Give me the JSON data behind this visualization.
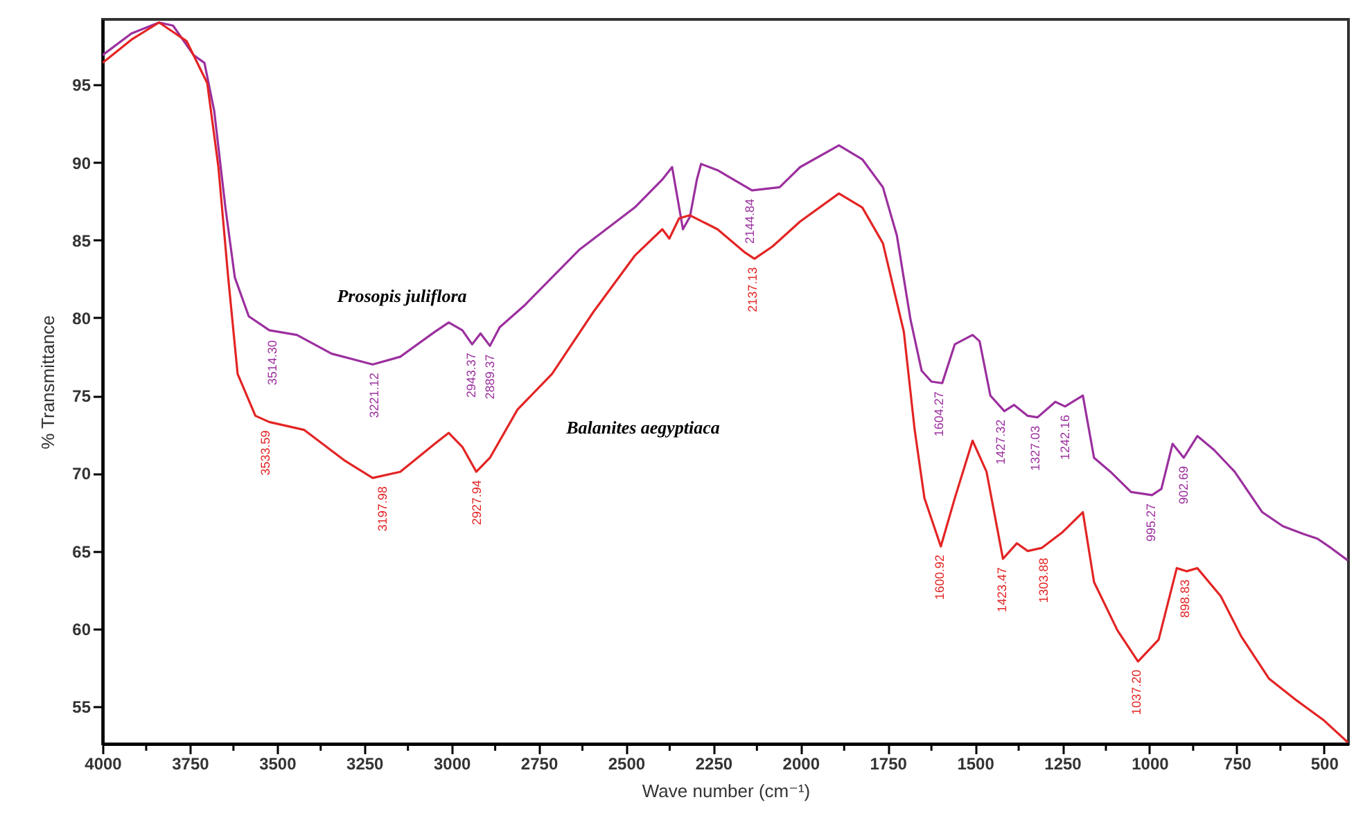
{
  "chart_data": {
    "type": "line",
    "xlabel": "Wave number (cm⁻¹)",
    "ylabel": "% Transmittance",
    "xlim": [
      4000,
      430
    ],
    "ylim": [
      52.6,
      99.2
    ],
    "xticks": [
      4000,
      {
        "value": 3875,
        "label": null
      },
      3750,
      {
        "value": 3625,
        "label": null
      },
      3500,
      {
        "value": 3375,
        "label": null
      },
      3250,
      {
        "value": 3125,
        "label": null
      },
      3000,
      {
        "value": 2875,
        "label": null
      },
      2750,
      {
        "value": 2625,
        "label": null
      },
      2500,
      {
        "value": 2375,
        "label": null
      },
      2250,
      {
        "value": 2125,
        "label": null
      },
      2000,
      {
        "value": 1875,
        "label": null
      },
      1750,
      {
        "value": 1625,
        "label": null
      },
      1500,
      {
        "value": 1375,
        "label": null
      },
      1250,
      {
        "value": 1125,
        "label": null
      },
      1000,
      {
        "value": 875,
        "label": null
      },
      750,
      {
        "value": 625,
        "label": null
      },
      500
    ],
    "yticks": [
      55,
      60,
      65,
      70,
      75,
      80,
      85,
      90,
      95
    ],
    "series": [
      {
        "name": "Prosopis juliflora",
        "color": "#9b2f9e",
        "x": [
          4000,
          3917,
          3838,
          3798,
          3739,
          3708,
          3680,
          3648,
          3621,
          3581,
          3522,
          3443,
          3344,
          3226,
          3147,
          3048,
          3008,
          2969,
          2941,
          2917,
          2890,
          2862,
          2791,
          2633,
          2475,
          2396,
          2368,
          2337,
          2317,
          2297,
          2285,
          2238,
          2139,
          2060,
          2001,
          1890,
          1823,
          1764,
          1724,
          1685,
          1653,
          1625,
          1594,
          1558,
          1507,
          1487,
          1456,
          1416,
          1388,
          1349,
          1321,
          1270,
          1242,
          1191,
          1159,
          1112,
          1053,
          993,
          966,
          934,
          902,
          863,
          815,
          756,
          677,
          618,
          559,
          519,
          480,
          432
        ],
        "values": [
          96.9,
          98.3,
          99.0,
          98.8,
          96.9,
          96.4,
          93.3,
          87.1,
          82.6,
          80.1,
          79.2,
          78.9,
          77.7,
          77.0,
          77.5,
          79.1,
          79.7,
          79.2,
          78.3,
          79.0,
          78.2,
          79.4,
          80.8,
          84.4,
          87.1,
          88.9,
          89.7,
          85.7,
          86.5,
          88.9,
          89.9,
          89.5,
          88.2,
          88.4,
          89.7,
          91.1,
          90.2,
          88.4,
          85.3,
          79.9,
          76.6,
          75.9,
          75.8,
          78.3,
          78.9,
          78.5,
          75.0,
          74.0,
          74.4,
          73.7,
          73.6,
          74.6,
          74.3,
          75.0,
          71.0,
          70.1,
          68.8,
          68.6,
          69.0,
          71.9,
          71.0,
          72.4,
          71.5,
          70.1,
          67.5,
          66.6,
          66.1,
          65.8,
          65.2,
          64.4
        ]
      },
      {
        "name": "Balanites aegyptiaca",
        "color": "#e32424",
        "x": [
          4000,
          3917,
          3838,
          3759,
          3700,
          3668,
          3640,
          3613,
          3562,
          3522,
          3423,
          3305,
          3226,
          3147,
          3048,
          3008,
          2969,
          2929,
          2890,
          2811,
          2712,
          2593,
          2475,
          2396,
          2376,
          2348,
          2317,
          2238,
          2159,
          2132,
          2080,
          2001,
          1890,
          1823,
          1764,
          1704,
          1673,
          1645,
          1598,
          1558,
          1507,
          1467,
          1420,
          1380,
          1349,
          1309,
          1250,
          1191,
          1159,
          1092,
          1033,
          974,
          922,
          894,
          863,
          796,
          737,
          658,
          579,
          500,
          432
        ],
        "values": [
          96.4,
          97.9,
          99.0,
          97.8,
          95.1,
          89.7,
          82.6,
          76.4,
          73.7,
          73.3,
          72.8,
          70.8,
          69.7,
          70.1,
          71.9,
          72.6,
          71.7,
          70.1,
          71.0,
          74.1,
          76.4,
          80.4,
          84.0,
          85.7,
          85.1,
          86.4,
          86.6,
          85.7,
          84.2,
          83.8,
          84.6,
          86.2,
          88.0,
          87.1,
          84.8,
          79.1,
          72.8,
          68.4,
          65.3,
          68.4,
          72.1,
          70.1,
          64.5,
          65.5,
          65.0,
          65.2,
          66.2,
          67.5,
          63.0,
          59.9,
          57.9,
          59.3,
          63.9,
          63.7,
          63.9,
          62.1,
          59.5,
          56.8,
          55.4,
          54.1,
          52.7
        ]
      }
    ],
    "annotations": [
      {
        "text": "3514.30",
        "x": 3514.3,
        "y": 79.1
      },
      {
        "text": "3221.12",
        "x": 3221.12,
        "y": 77.0
      },
      {
        "text": "2943.37",
        "x": 2943.37,
        "y": 78.3
      },
      {
        "text": "2889.37",
        "x": 2889.37,
        "y": 78.2
      },
      {
        "text": "2144.84",
        "x": 2144.84,
        "y": 88.2
      },
      {
        "text": "1604.27",
        "x": 1604.27,
        "y": 75.8
      },
      {
        "text": "1427.32",
        "x": 1427.32,
        "y": 74.0
      },
      {
        "text": "1327.03",
        "x": 1327.03,
        "y": 73.6
      },
      {
        "text": "1242.16",
        "x": 1242.16,
        "y": 74.3
      },
      {
        "text": "995.27",
        "x": 995.27,
        "y": 68.6
      },
      {
        "text": "902.69",
        "x": 902.69,
        "y": 71.0
      },
      {
        "text": "3533.59",
        "x": 3533.59,
        "y": 73.3
      },
      {
        "text": "3197.98",
        "x": 3197.98,
        "y": 69.7
      },
      {
        "text": "2927.94",
        "x": 2927.94,
        "y": 70.1
      },
      {
        "text": "2137.13",
        "x": 2137.13,
        "y": 83.8
      },
      {
        "text": "1600.92",
        "x": 1600.92,
        "y": 65.3
      },
      {
        "text": "1423.47",
        "x": 1423.47,
        "y": 64.5
      },
      {
        "text": "1303.88",
        "x": 1303.88,
        "y": 65.1
      },
      {
        "text": "1037.20",
        "x": 1037.2,
        "y": 57.9
      },
      {
        "text": "898.83",
        "x": 898.83,
        "y": 63.7
      }
    ]
  }
}
